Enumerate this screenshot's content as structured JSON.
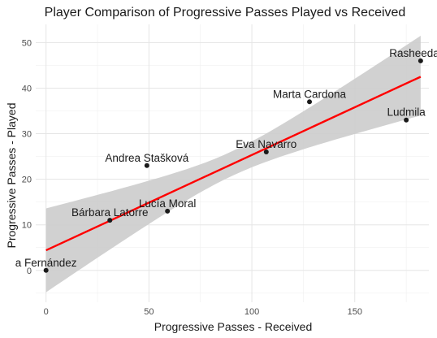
{
  "chart_data": {
    "type": "scatter",
    "title": "Player Comparison of Progressive Passes Played vs Received",
    "xlabel": "Progressive Passes - Received",
    "ylabel": "Progressive Passes - Played",
    "xlim": [
      -5,
      186
    ],
    "ylim": [
      -7,
      54
    ],
    "x_ticks": [
      0,
      50,
      100,
      150
    ],
    "y_ticks": [
      0,
      10,
      20,
      30,
      40,
      50
    ],
    "grid": true,
    "points": [
      {
        "label": "Rasheedat A",
        "x": 182,
        "y": 46
      },
      {
        "label": "Marta Cardona",
        "x": 128,
        "y": 37
      },
      {
        "label": "Ludmila",
        "x": 175,
        "y": 33
      },
      {
        "label": "Eva Navarro",
        "x": 107,
        "y": 26
      },
      {
        "label": "Andrea Stašková",
        "x": 49,
        "y": 23
      },
      {
        "label": "Lucía Moral",
        "x": 59,
        "y": 13
      },
      {
        "label": "Bárbara Latorre",
        "x": 31,
        "y": 11
      },
      {
        "label": "a Fernández",
        "x": 0,
        "y": 0
      }
    ],
    "trend_line": {
      "type": "linear",
      "color": "#ff0000",
      "x": [
        0,
        182
      ],
      "y": [
        4.4,
        42.5
      ]
    },
    "confidence_band": {
      "color": "#cccccc",
      "x": [
        0,
        182
      ],
      "upper": [
        13.6,
        51.5
      ],
      "lower": [
        -4.8,
        34
      ]
    }
  }
}
